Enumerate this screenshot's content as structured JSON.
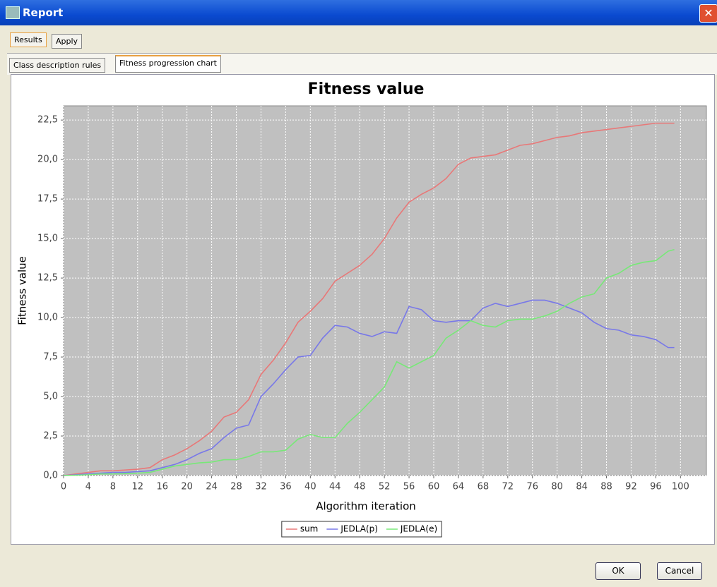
{
  "window": {
    "title": "Report"
  },
  "tabs": [
    "Results",
    "Apply"
  ],
  "subtabs": [
    "Class description rules",
    "Fitness progression chart"
  ],
  "buttons": [
    "OK",
    "Cancel"
  ],
  "chart_data": {
    "type": "line",
    "title": "Fitness value",
    "x_label": "Algorithm iteration",
    "y_label": "Fitness value",
    "x": [
      0,
      2,
      4,
      6,
      8,
      10,
      12,
      14,
      16,
      18,
      20,
      22,
      24,
      26,
      28,
      30,
      32,
      34,
      36,
      38,
      40,
      42,
      44,
      46,
      48,
      50,
      52,
      54,
      56,
      58,
      60,
      62,
      64,
      66,
      68,
      70,
      72,
      74,
      76,
      78,
      80,
      82,
      84,
      86,
      88,
      90,
      92,
      94,
      96,
      98,
      99
    ],
    "series": [
      {
        "name": "sum",
        "color": "#e87878",
        "values": [
          0,
          0.1,
          0.2,
          0.3,
          0.3,
          0.35,
          0.4,
          0.5,
          1.0,
          1.3,
          1.7,
          2.2,
          2.8,
          3.7,
          4.0,
          4.8,
          6.4,
          7.3,
          8.4,
          9.7,
          10.4,
          11.2,
          12.3,
          12.8,
          13.3,
          14.0,
          15.0,
          16.3,
          17.3,
          17.8,
          18.2,
          18.8,
          19.7,
          20.1,
          20.2,
          20.3,
          20.6,
          20.9,
          21.0,
          21.2,
          21.4,
          21.5,
          21.7,
          21.8,
          21.9,
          22.0,
          22.1,
          22.2,
          22.3,
          22.3,
          22.3
        ]
      },
      {
        "name": "JEDLA(p)",
        "color": "#7878e8",
        "values": [
          0,
          0.05,
          0.1,
          0.15,
          0.2,
          0.2,
          0.25,
          0.3,
          0.5,
          0.7,
          1.0,
          1.4,
          1.7,
          2.4,
          3.0,
          3.2,
          5.0,
          5.8,
          6.7,
          7.5,
          7.6,
          8.7,
          9.5,
          9.4,
          9.0,
          8.8,
          9.1,
          9.0,
          10.7,
          10.5,
          9.8,
          9.7,
          9.8,
          9.8,
          10.6,
          10.9,
          10.7,
          10.9,
          11.1,
          11.1,
          10.9,
          10.6,
          10.3,
          9.7,
          9.3,
          9.2,
          8.9,
          8.8,
          8.6,
          8.1,
          8.1
        ]
      },
      {
        "name": "JEDLA(e)",
        "color": "#78e878",
        "values": [
          0,
          0.02,
          0.05,
          0.1,
          0.1,
          0.12,
          0.15,
          0.2,
          0.4,
          0.6,
          0.7,
          0.8,
          0.85,
          1.0,
          1.0,
          1.2,
          1.5,
          1.5,
          1.6,
          2.3,
          2.6,
          2.4,
          2.4,
          3.3,
          4.0,
          4.8,
          5.6,
          7.2,
          6.8,
          7.2,
          7.6,
          8.7,
          9.2,
          9.8,
          9.5,
          9.4,
          9.8,
          9.9,
          9.9,
          10.1,
          10.4,
          10.9,
          11.3,
          11.5,
          12.5,
          12.8,
          13.3,
          13.5,
          13.6,
          14.2,
          14.3
        ]
      }
    ],
    "xlim": [
      0,
      104.2
    ],
    "ylim": [
      0,
      23.4
    ],
    "xticks": [
      0,
      4,
      8,
      12,
      16,
      20,
      24,
      28,
      32,
      36,
      40,
      44,
      48,
      52,
      56,
      60,
      64,
      68,
      72,
      76,
      80,
      84,
      88,
      92,
      96,
      100
    ],
    "yticks": [
      {
        "value": 0,
        "label": "0,0"
      },
      {
        "value": 2.5,
        "label": "2,5"
      },
      {
        "value": 5,
        "label": "5,0"
      },
      {
        "value": 7.5,
        "label": "7,5"
      },
      {
        "value": 10,
        "label": "10,0"
      },
      {
        "value": 12.5,
        "label": "12,5"
      },
      {
        "value": 15,
        "label": "15,0"
      },
      {
        "value": 17.5,
        "label": "17,5"
      },
      {
        "value": 20,
        "label": "20,0"
      },
      {
        "value": 22.5,
        "label": "22,5"
      }
    ],
    "grid": true,
    "legend": "bottom"
  }
}
